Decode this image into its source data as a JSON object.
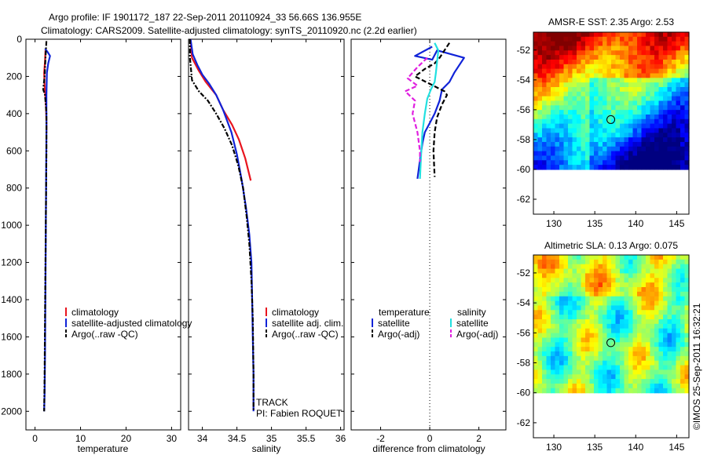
{
  "header": {
    "title_line1": "Argo profile: IF 1901172_187 22-Sep-2011 20110924_33 56.66S 136.955E",
    "title_line2": "Climatology: CARS2009. Satellite-adjusted climatology: synTS_20110920.nc (2.2d earlier)"
  },
  "credit": "©IMOS 25-Sep-2011 16:32:21",
  "colors": {
    "climatology": "#e8141e",
    "satellite": "#1023d8",
    "argo": "#000000",
    "sal_satellite": "#22e0e0",
    "sal_argo": "#e020e0"
  },
  "panels": {
    "temperature": {
      "xlabel": "temperature",
      "legend": [
        "climatology",
        "satellite-adjusted climatology",
        "Argo(..raw -QC)"
      ]
    },
    "salinity": {
      "xlabel": "salinity",
      "legend": [
        "climatology",
        "satellite adj. clim.",
        "Argo(..raw -QC)"
      ],
      "note_line1": "TRACK",
      "note_line2": "PI: Fabien ROQUET"
    },
    "difference": {
      "xlabel": "difference from climatology",
      "legend_head_temp": "temperature",
      "legend_head_sal": "salinity",
      "legend_temp": [
        "satellite",
        "Argo(-adj)"
      ],
      "legend_sal": [
        "satellite",
        "Argo(-adj)"
      ]
    },
    "map_sst": {
      "title": "AMSR-E SST: 2.35 Argo: 2.53"
    },
    "map_sla": {
      "title": "Altimetric SLA: 0.13 Argo: 0.075"
    }
  },
  "chart_data": [
    {
      "type": "line",
      "xlabel": "temperature",
      "ylabel": "",
      "xlim": [
        -2,
        32
      ],
      "ylim": [
        2100,
        0
      ],
      "xticks": [
        0,
        10,
        20,
        30
      ],
      "yticks": [
        0,
        200,
        400,
        600,
        800,
        1000,
        1200,
        1400,
        1600,
        1800,
        2000
      ],
      "series": [
        {
          "name": "climatology",
          "style": "solid",
          "color": "#e8141e",
          "x": [
            2.3,
            2.2,
            2.0,
            2.1,
            2.4,
            2.5,
            2.5
          ],
          "y": [
            60,
            120,
            180,
            250,
            350,
            450,
            500
          ]
        },
        {
          "name": "satellite-adjusted climatology",
          "style": "solid",
          "color": "#1023d8",
          "x": [
            2.2,
            2.8,
            3.3,
            2.9,
            2.6,
            2.5,
            2.5,
            2.45,
            2.4,
            2.35,
            2.3,
            2.25,
            2.2,
            2.1,
            2.0
          ],
          "y": [
            50,
            70,
            90,
            130,
            180,
            300,
            500,
            700,
            900,
            1100,
            1300,
            1500,
            1700,
            1900,
            2000
          ]
        },
        {
          "name": "Argo(..raw -QC)",
          "style": "dashdot",
          "color": "#000000",
          "x": [
            2.5,
            2.3,
            2.1,
            1.8,
            2.2,
            2.5,
            2.5,
            2.4,
            2.3,
            2.2,
            2.1,
            2.0
          ],
          "y": [
            10,
            100,
            200,
            270,
            300,
            400,
            600,
            900,
            1200,
            1500,
            1800,
            2000
          ]
        }
      ]
    },
    {
      "type": "line",
      "xlabel": "salinity",
      "ylabel": "",
      "xlim": [
        33.8,
        36.05
      ],
      "ylim": [
        2100,
        0
      ],
      "xticks": [
        34,
        34.5,
        35,
        35.5,
        36
      ],
      "series": [
        {
          "name": "climatology",
          "style": "solid",
          "color": "#e8141e",
          "x": [
            33.83,
            33.85,
            33.95,
            34.05,
            34.2,
            34.3,
            34.43,
            34.53,
            34.62,
            34.7
          ],
          "y": [
            0,
            100,
            170,
            230,
            300,
            380,
            460,
            540,
            640,
            760
          ]
        },
        {
          "name": "satellite adj. clim.",
          "style": "solid",
          "color": "#1023d8",
          "x": [
            33.83,
            33.86,
            33.93,
            34.0,
            34.1,
            34.2,
            34.3,
            34.42,
            34.5,
            34.57,
            34.63,
            34.68,
            34.71,
            34.72,
            34.73,
            34.74,
            34.74
          ],
          "y": [
            0,
            80,
            140,
            190,
            240,
            300,
            380,
            500,
            620,
            760,
            900,
            1050,
            1200,
            1400,
            1600,
            1800,
            2000
          ]
        },
        {
          "name": "Argo(..raw -QC)",
          "style": "dashdot",
          "color": "#000000",
          "x": [
            33.82,
            33.82,
            33.85,
            33.95,
            34.08,
            34.2,
            34.32,
            34.43,
            34.52,
            34.59,
            34.64,
            34.68,
            34.71,
            34.73,
            34.74,
            34.74
          ],
          "y": [
            0,
            100,
            220,
            280,
            330,
            400,
            480,
            570,
            680,
            800,
            950,
            1100,
            1300,
            1500,
            1800,
            2000
          ]
        }
      ]
    },
    {
      "type": "line",
      "xlabel": "difference from climatology",
      "ylabel": "",
      "xlim": [
        -3.2,
        3.1
      ],
      "ylim": [
        2100,
        0
      ],
      "xticks": [
        -2,
        0,
        2
      ],
      "series": [
        {
          "name": "temperature satellite",
          "style": "solid",
          "color": "#1023d8",
          "x": [
            0.1,
            -0.6,
            0.1,
            0.3,
            1.4,
            1.0,
            0.8,
            0.5,
            0.4,
            0.2,
            0.0,
            -0.2,
            -0.3,
            -0.4,
            -0.5
          ],
          "y": [
            40,
            90,
            110,
            60,
            100,
            180,
            230,
            270,
            330,
            400,
            450,
            500,
            560,
            650,
            750
          ]
        },
        {
          "name": "temperature Argo(-adj)",
          "style": "dashed",
          "color": "#000000",
          "x": [
            0.8,
            0.6,
            0.4,
            0.2,
            -0.2,
            -0.6,
            0.0,
            0.6,
            0.7,
            0.5,
            0.3,
            0.2,
            0.15,
            0.2
          ],
          "y": [
            20,
            60,
            100,
            130,
            160,
            200,
            240,
            280,
            300,
            350,
            420,
            500,
            600,
            740
          ]
        },
        {
          "name": "salinity satellite",
          "style": "solid",
          "color": "#22e0e0",
          "x": [
            0.2,
            0.35,
            0.3,
            0.25,
            0.2,
            0.05,
            -0.1,
            -0.2,
            -0.3,
            -0.35,
            -0.4
          ],
          "y": [
            20,
            60,
            120,
            180,
            230,
            270,
            320,
            400,
            500,
            620,
            750
          ]
        },
        {
          "name": "salinity Argo(-adj)",
          "style": "dashed",
          "color": "#e020e0",
          "x": [
            -0.1,
            -0.5,
            -0.9,
            -0.5,
            -1.0,
            -0.6,
            -0.7,
            -0.5,
            -0.4,
            -0.4
          ],
          "y": [
            100,
            150,
            210,
            250,
            280,
            330,
            400,
            500,
            600,
            660
          ]
        }
      ]
    },
    {
      "type": "heatmap",
      "title": "AMSR-E SST: 2.35 Argo: 2.53",
      "xlim": [
        127.5,
        146.5
      ],
      "ylim": [
        -63,
        -50.8
      ],
      "xticks": [
        130,
        135,
        140,
        145
      ],
      "yticks": [
        -52,
        -54,
        -56,
        -58,
        -60,
        -62
      ],
      "data_extent_lat": [
        -60,
        -50.8
      ],
      "argo_position": {
        "lon": 136.955,
        "lat": -56.66
      }
    },
    {
      "type": "heatmap",
      "title": "Altimetric SLA: 0.13 Argo: 0.075",
      "xlim": [
        127.5,
        146.5
      ],
      "ylim": [
        -63,
        -50.8
      ],
      "xticks": [
        130,
        135,
        140,
        145
      ],
      "yticks": [
        -52,
        -54,
        -56,
        -58,
        -60,
        -62
      ],
      "data_extent_lat": [
        -60,
        -50.8
      ],
      "argo_position": {
        "lon": 136.955,
        "lat": -56.66
      }
    }
  ]
}
